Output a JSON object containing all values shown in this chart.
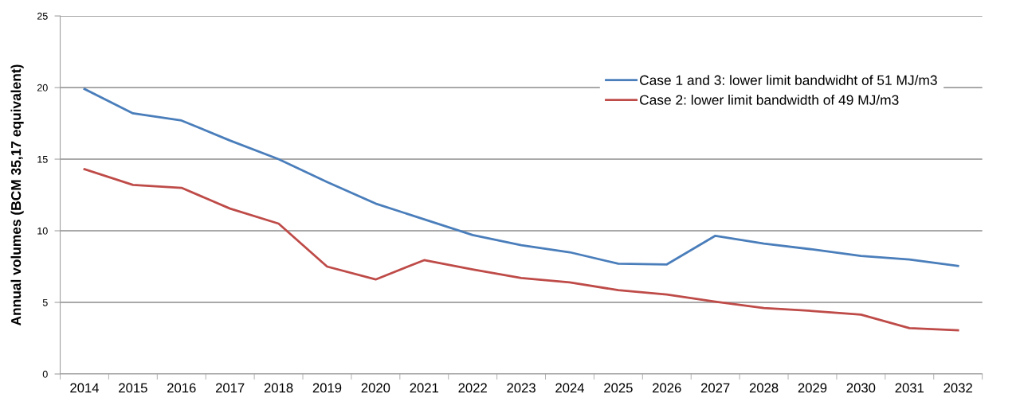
{
  "chart_data": {
    "type": "line",
    "ylabel": "Annual volumes (BCM 35,17 equivalent)",
    "categories": [
      "2014",
      "2015",
      "2016",
      "2017",
      "2018",
      "2019",
      "2020",
      "2021",
      "2022",
      "2023",
      "2024",
      "2025",
      "2026",
      "2027",
      "2028",
      "2029",
      "2030",
      "2031",
      "2032"
    ],
    "series": [
      {
        "name": "Case 1 and 3: lower limit bandwidht of 51 MJ/m3",
        "color": "#4a7ebb",
        "values": [
          19.9,
          18.2,
          17.7,
          16.3,
          15.0,
          13.4,
          11.9,
          10.8,
          9.7,
          9.0,
          8.5,
          7.7,
          7.65,
          9.65,
          9.1,
          8.7,
          8.25,
          8.0,
          7.55
        ]
      },
      {
        "name": "Case 2: lower limit bandwidth of 49 MJ/m3",
        "color": "#be4b48",
        "values": [
          14.3,
          13.2,
          13.0,
          11.55,
          10.5,
          7.5,
          6.6,
          7.95,
          7.3,
          6.7,
          6.4,
          5.85,
          5.55,
          5.05,
          4.6,
          4.4,
          4.15,
          3.2,
          3.05
        ]
      }
    ],
    "ylim": [
      0,
      25
    ],
    "yticks": [
      0,
      5,
      10,
      15,
      20,
      25
    ],
    "grid": "y",
    "legend": "top right",
    "marker": "none",
    "line_style": "solid"
  }
}
